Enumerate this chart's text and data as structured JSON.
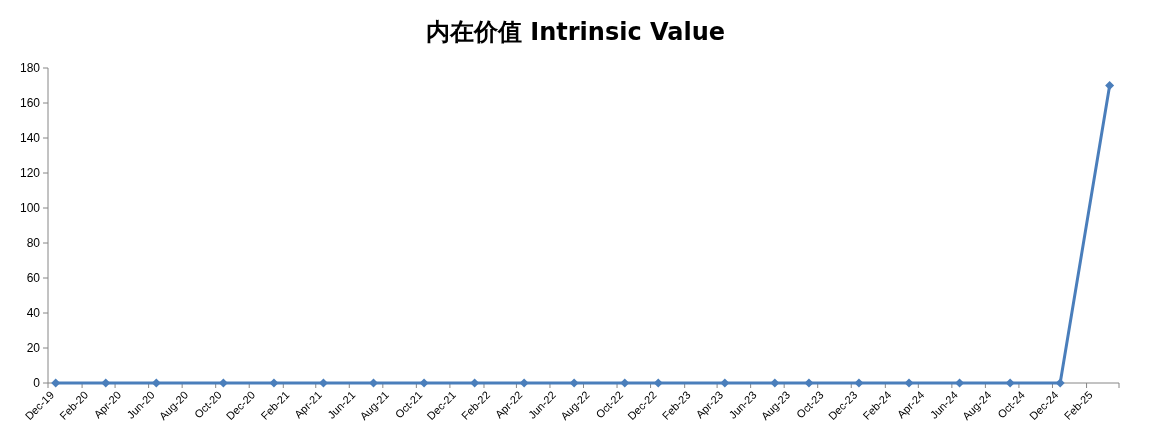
{
  "chart_data": {
    "type": "line",
    "title": "内在价值 Intrinsic Value",
    "x": [
      "2019-12-15",
      "2020-03-15",
      "2020-06-15",
      "2020-10-15",
      "2021-01-15",
      "2021-04-15",
      "2021-07-15",
      "2021-10-15",
      "2022-01-15",
      "2022-04-15",
      "2022-07-15",
      "2022-10-15",
      "2022-12-15",
      "2023-04-15",
      "2023-07-15",
      "2023-09-15",
      "2023-12-15",
      "2024-03-15",
      "2024-06-15",
      "2024-09-15",
      "2024-12-15",
      "2025-03-15"
    ],
    "series": [
      {
        "color": "#4a7ebb",
        "values": [
          0,
          0,
          0,
          0,
          0,
          0,
          0,
          0,
          0,
          0,
          0,
          0,
          0,
          0,
          0,
          0,
          0,
          0,
          0,
          0,
          0,
          170
        ]
      }
    ],
    "xlim": [
      "2019-12-01",
      "2025-04-01"
    ],
    "xticks": [
      {
        "value": "2019-12-01",
        "label": "Dec-19"
      },
      {
        "value": "2020-02-01",
        "label": "Feb-20"
      },
      {
        "value": "2020-04-01",
        "label": "Apr-20"
      },
      {
        "value": "2020-06-01",
        "label": "Jun-20"
      },
      {
        "value": "2020-08-01",
        "label": "Aug-20"
      },
      {
        "value": "2020-10-01",
        "label": "Oct-20"
      },
      {
        "value": "2020-12-01",
        "label": "Dec-20"
      },
      {
        "value": "2021-02-01",
        "label": "Feb-21"
      },
      {
        "value": "2021-04-01",
        "label": "Apr-21"
      },
      {
        "value": "2021-06-01",
        "label": "Jun-21"
      },
      {
        "value": "2021-08-01",
        "label": "Aug-21"
      },
      {
        "value": "2021-10-01",
        "label": "Oct-21"
      },
      {
        "value": "2021-12-01",
        "label": "Dec-21"
      },
      {
        "value": "2022-02-01",
        "label": "Feb-22"
      },
      {
        "value": "2022-04-01",
        "label": "Apr-22"
      },
      {
        "value": "2022-06-01",
        "label": "Jun-22"
      },
      {
        "value": "2022-08-01",
        "label": "Aug-22"
      },
      {
        "value": "2022-10-01",
        "label": "Oct-22"
      },
      {
        "value": "2022-12-01",
        "label": "Dec-22"
      },
      {
        "value": "2023-02-01",
        "label": "Feb-23"
      },
      {
        "value": "2023-04-01",
        "label": "Apr-23"
      },
      {
        "value": "2023-06-01",
        "label": "Jun-23"
      },
      {
        "value": "2023-08-01",
        "label": "Aug-23"
      },
      {
        "value": "2023-10-01",
        "label": "Oct-23"
      },
      {
        "value": "2023-12-01",
        "label": "Dec-23"
      },
      {
        "value": "2024-02-01",
        "label": "Feb-24"
      },
      {
        "value": "2024-04-01",
        "label": "Apr-24"
      },
      {
        "value": "2024-06-01",
        "label": "Jun-24"
      },
      {
        "value": "2024-08-01",
        "label": "Aug-24"
      },
      {
        "value": "2024-10-01",
        "label": "Oct-24"
      },
      {
        "value": "2024-12-01",
        "label": "Dec-24"
      },
      {
        "value": "2025-02-01",
        "label": "Feb-25"
      },
      {
        "value": "2025-04-01",
        "label": null
      }
    ],
    "ylim": [
      0,
      180
    ],
    "yticks": [
      0,
      20,
      40,
      60,
      80,
      100,
      120,
      140,
      160,
      180
    ],
    "marker": "diamond",
    "line_style": "solid",
    "grid": false
  }
}
